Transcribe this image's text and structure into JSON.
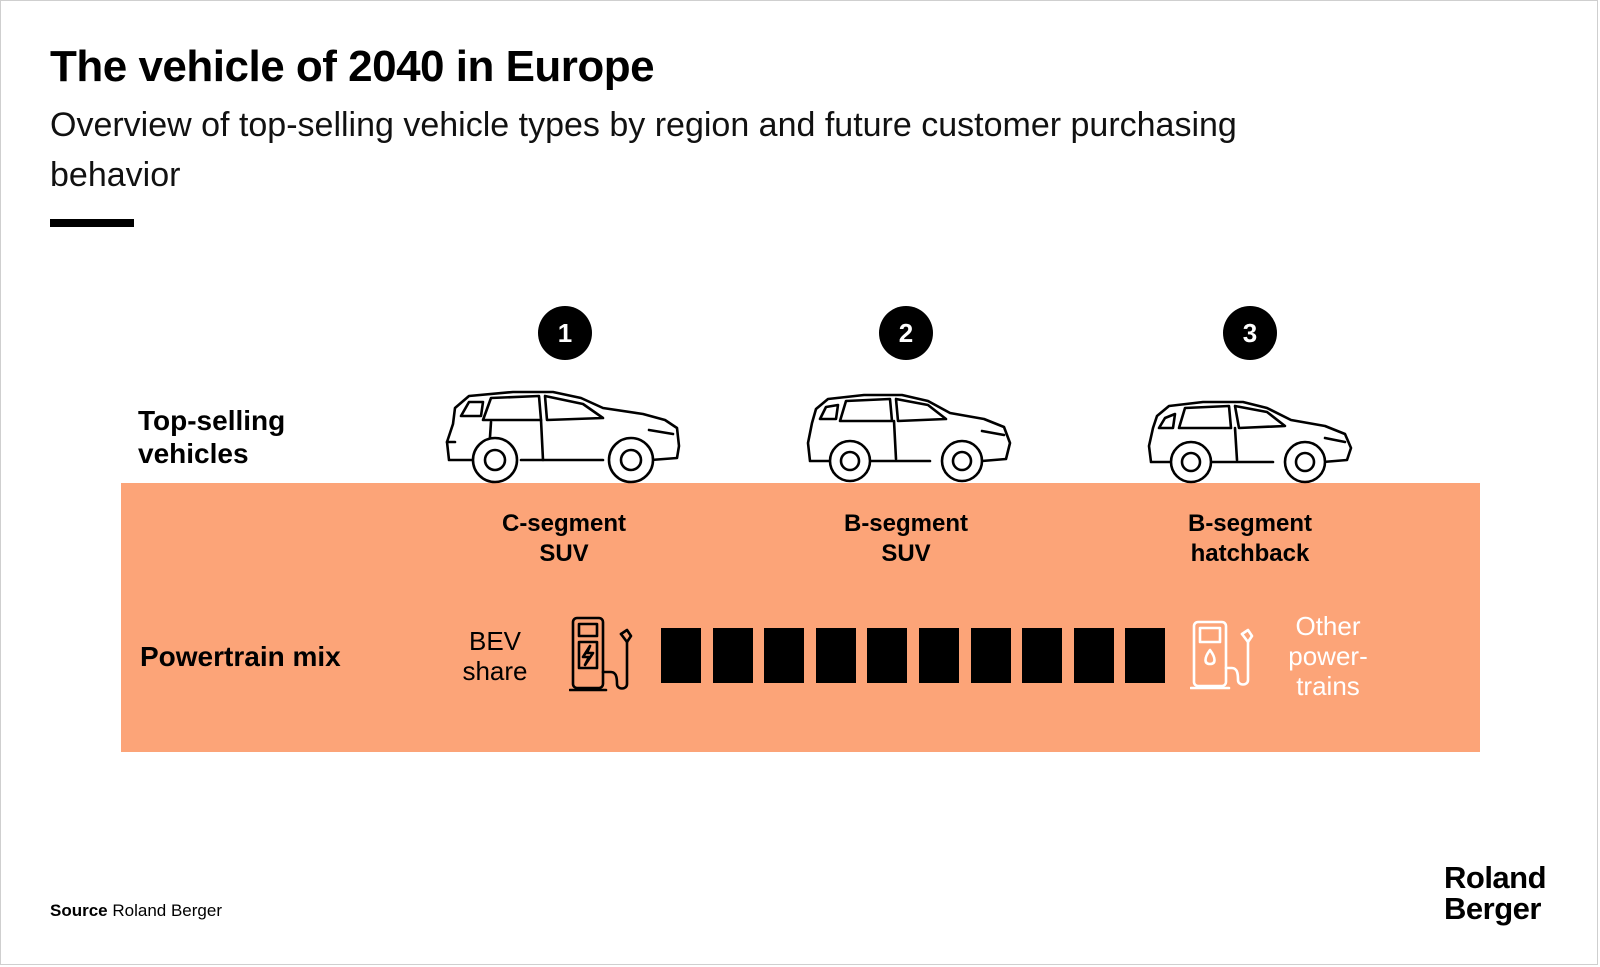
{
  "header": {
    "title": "The vehicle of 2040 in Europe",
    "subtitle": "Overview of top-selling vehicle types by region and future customer purchasing behavior"
  },
  "rows": {
    "top_selling_label_line1": "Top-selling",
    "top_selling_label_line2": "vehicles",
    "powertrain_label": "Powertrain mix"
  },
  "vehicles": [
    {
      "rank": "1",
      "name_line1": "C-segment",
      "name_line2": "SUV"
    },
    {
      "rank": "2",
      "name_line1": "B-segment",
      "name_line2": "SUV"
    },
    {
      "rank": "3",
      "name_line1": "B-segment",
      "name_line2": "hatchback"
    }
  ],
  "powertrain": {
    "bev_label_line1": "BEV",
    "bev_label_line2": "share",
    "other_label_line1": "Other",
    "other_label_line2": "power-",
    "other_label_line3": "trains",
    "bev_blocks_filled": 10,
    "bev_blocks_total": 10
  },
  "footer": {
    "source_label": "Source",
    "source_value": "Roland Berger",
    "logo_line1": "Roland",
    "logo_line2": "Berger"
  },
  "colors": {
    "band": "#FCA478",
    "blocks": "#000000",
    "other_text": "#FFFFFF"
  },
  "icons": {
    "bev": "ev-charger-icon",
    "other": "fuel-pump-icon",
    "vehicles": [
      "c-suv-car-icon",
      "b-suv-car-icon",
      "hatchback-car-icon"
    ]
  }
}
